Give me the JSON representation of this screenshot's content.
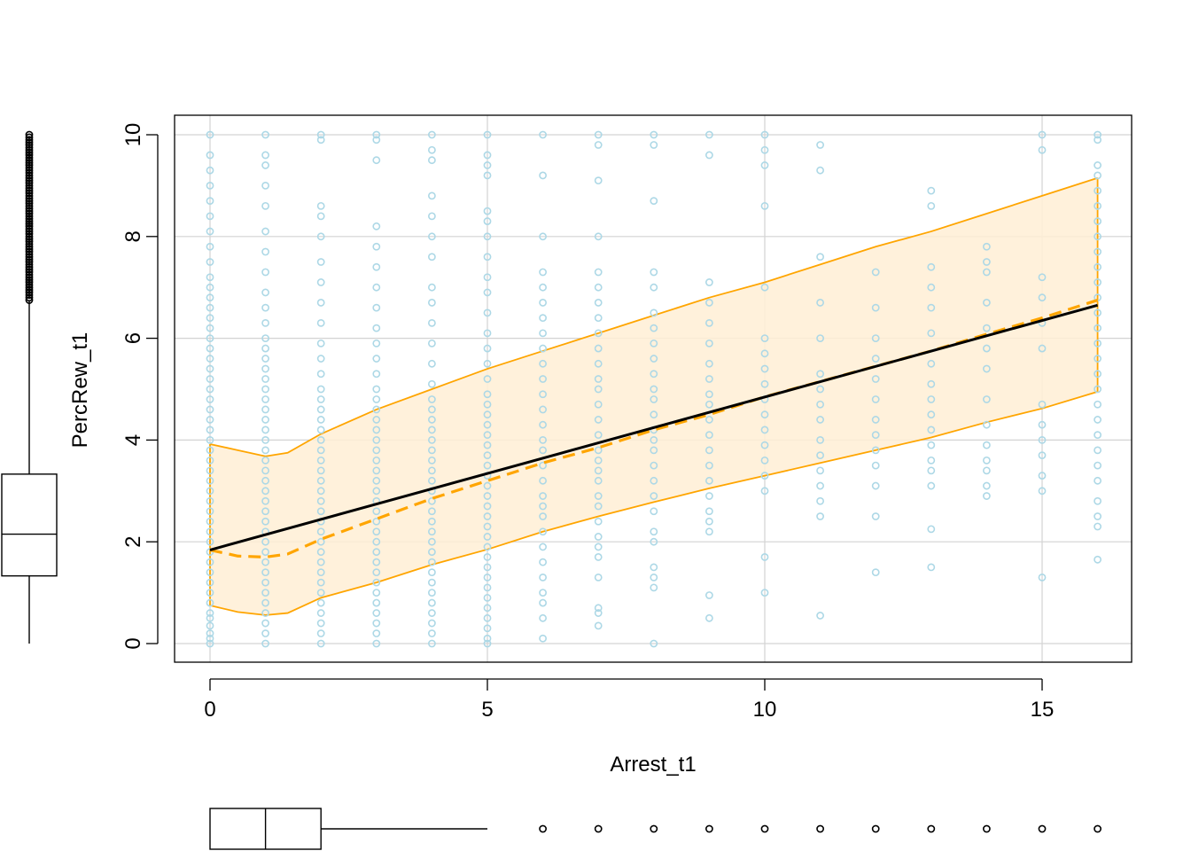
{
  "chart_data": {
    "type": "scatter",
    "xlabel": "Arrest_t1",
    "ylabel": "PercRew_t1",
    "xlim": [
      -0.6,
      16.7
    ],
    "ylim": [
      -0.38,
      10.4
    ],
    "x_ticks": [
      0,
      5,
      10,
      15
    ],
    "y_ticks": [
      0,
      2,
      4,
      6,
      8,
      10
    ],
    "grid": true,
    "colors": {
      "points": "#add8e6",
      "band_fill": "#ffefd5",
      "band_line": "#ffa500",
      "fit": "#000000",
      "smooth": "#ffa500"
    },
    "points_columns": [
      {
        "x": 0,
        "ys": [
          0,
          0.1,
          0.2,
          0.35,
          0.5,
          0.6,
          0.8,
          1.0,
          1.2,
          1.4,
          1.6,
          1.8,
          2.0,
          2.2,
          2.4,
          2.6,
          2.8,
          3.0,
          3.2,
          3.4,
          3.6,
          3.8,
          4.0,
          4.2,
          4.4,
          4.6,
          4.8,
          5.0,
          5.2,
          5.4,
          5.6,
          5.8,
          6.0,
          6.2,
          6.4,
          6.6,
          6.8,
          7.0,
          7.2,
          7.5,
          7.8,
          8.1,
          8.4,
          8.7,
          9.0,
          9.3,
          9.6,
          10.0
        ]
      },
      {
        "x": 1,
        "ys": [
          0,
          0.2,
          0.4,
          0.6,
          0.8,
          1.0,
          1.2,
          1.4,
          1.6,
          1.8,
          2.0,
          2.2,
          2.4,
          2.6,
          2.8,
          3.0,
          3.2,
          3.4,
          3.6,
          3.8,
          4.0,
          4.2,
          4.4,
          4.6,
          4.8,
          5.0,
          5.2,
          5.4,
          5.6,
          5.8,
          6.0,
          6.3,
          6.6,
          6.9,
          7.3,
          7.7,
          8.1,
          8.6,
          9.0,
          9.4,
          9.6,
          10.0
        ]
      },
      {
        "x": 2,
        "ys": [
          0,
          0.2,
          0.4,
          0.6,
          0.8,
          1.0,
          1.2,
          1.4,
          1.6,
          1.8,
          2.0,
          2.2,
          2.4,
          2.6,
          2.8,
          3.0,
          3.2,
          3.4,
          3.6,
          3.8,
          4.0,
          4.2,
          4.4,
          4.6,
          4.8,
          5.0,
          5.3,
          5.6,
          5.9,
          6.3,
          6.7,
          7.1,
          7.5,
          8.0,
          8.4,
          8.6,
          9.9,
          10.0
        ]
      },
      {
        "x": 3,
        "ys": [
          0,
          0.2,
          0.4,
          0.6,
          0.8,
          1.0,
          1.2,
          1.4,
          1.6,
          1.8,
          2.0,
          2.2,
          2.4,
          2.6,
          2.8,
          3.0,
          3.2,
          3.4,
          3.6,
          3.8,
          4.0,
          4.2,
          4.4,
          4.6,
          4.8,
          5.0,
          5.3,
          5.6,
          5.9,
          6.2,
          6.6,
          7.0,
          7.4,
          7.8,
          8.2,
          9.5,
          9.9,
          10.0
        ]
      },
      {
        "x": 4,
        "ys": [
          0,
          0.2,
          0.4,
          0.6,
          0.8,
          1.0,
          1.2,
          1.4,
          1.6,
          1.8,
          2.0,
          2.2,
          2.4,
          2.6,
          2.8,
          3.0,
          3.2,
          3.4,
          3.6,
          3.8,
          4.0,
          4.2,
          4.4,
          4.6,
          4.8,
          5.1,
          5.5,
          5.9,
          6.3,
          6.7,
          7.0,
          7.6,
          8.0,
          8.4,
          8.8,
          9.5,
          9.7,
          10.0
        ]
      },
      {
        "x": 5,
        "ys": [
          0,
          0.1,
          0.3,
          0.5,
          0.7,
          0.9,
          1.1,
          1.3,
          1.5,
          1.7,
          1.9,
          2.1,
          2.3,
          2.5,
          2.7,
          2.9,
          3.1,
          3.3,
          3.5,
          3.7,
          3.9,
          4.1,
          4.3,
          4.5,
          4.7,
          4.9,
          5.2,
          5.5,
          5.8,
          6.1,
          6.5,
          6.9,
          7.2,
          7.6,
          8.0,
          8.3,
          8.5,
          9.2,
          9.4,
          9.6,
          10.0
        ]
      },
      {
        "x": 6,
        "ys": [
          0.1,
          0.5,
          0.8,
          1.0,
          1.3,
          1.6,
          1.9,
          2.2,
          2.5,
          2.7,
          2.9,
          3.2,
          3.5,
          3.8,
          4.0,
          4.3,
          4.6,
          4.9,
          5.2,
          5.5,
          5.8,
          6.1,
          6.4,
          6.7,
          7.0,
          7.3,
          8.0,
          9.2,
          10.0
        ]
      },
      {
        "x": 7,
        "ys": [
          0.35,
          0.6,
          0.7,
          1.3,
          1.7,
          1.9,
          2.1,
          2.4,
          2.7,
          2.9,
          3.2,
          3.4,
          3.6,
          3.8,
          4.1,
          4.4,
          4.7,
          5.0,
          5.2,
          5.5,
          5.8,
          6.1,
          6.4,
          6.7,
          7.0,
          7.3,
          8.0,
          9.1,
          9.8,
          10.0
        ]
      },
      {
        "x": 8,
        "ys": [
          0,
          1.1,
          1.3,
          1.5,
          2.0,
          2.2,
          2.6,
          2.9,
          3.2,
          3.5,
          3.8,
          4.0,
          4.2,
          4.5,
          4.8,
          5.0,
          5.3,
          5.6,
          5.9,
          6.2,
          6.5,
          7.0,
          7.3,
          8.7,
          9.8,
          10.0
        ]
      },
      {
        "x": 9,
        "ys": [
          0.5,
          0.95,
          2.2,
          2.4,
          2.6,
          2.9,
          3.2,
          3.5,
          3.8,
          4.1,
          4.4,
          4.7,
          4.9,
          5.2,
          5.5,
          5.9,
          6.3,
          6.7,
          7.1,
          9.6,
          10.0
        ]
      },
      {
        "x": 10,
        "ys": [
          1.0,
          1.7,
          3.0,
          3.3,
          3.6,
          3.9,
          4.2,
          4.5,
          4.8,
          5.1,
          5.4,
          5.7,
          6.0,
          7.0,
          8.6,
          9.4,
          9.7,
          10.0
        ]
      },
      {
        "x": 11,
        "ys": [
          0.55,
          2.5,
          2.8,
          3.1,
          3.4,
          3.7,
          4.0,
          4.4,
          4.7,
          5.0,
          5.3,
          6.0,
          6.7,
          7.6,
          9.3,
          9.8
        ]
      },
      {
        "x": 12,
        "ys": [
          1.4,
          2.5,
          3.1,
          3.5,
          3.8,
          4.1,
          4.4,
          4.8,
          5.2,
          5.6,
          6.0,
          6.6,
          7.3
        ]
      },
      {
        "x": 13,
        "ys": [
          1.5,
          2.25,
          3.1,
          3.4,
          3.6,
          3.9,
          4.2,
          4.5,
          4.8,
          5.1,
          5.5,
          6.1,
          6.6,
          7.0,
          7.4,
          8.6,
          8.9
        ]
      },
      {
        "x": 14,
        "ys": [
          2.9,
          3.1,
          3.4,
          3.6,
          3.9,
          4.3,
          4.8,
          5.4,
          5.8,
          6.2,
          6.7,
          7.3,
          7.5,
          7.8
        ]
      },
      {
        "x": 15,
        "ys": [
          1.3,
          3.0,
          3.3,
          3.7,
          4.0,
          4.3,
          4.7,
          5.8,
          6.3,
          6.8,
          7.2,
          9.7,
          10.0
        ]
      },
      {
        "x": 16,
        "ys": [
          1.65,
          2.3,
          2.5,
          2.8,
          3.2,
          3.5,
          3.8,
          4.1,
          4.4,
          4.7,
          5.0,
          5.3,
          5.6,
          5.9,
          6.2,
          6.5,
          6.8,
          7.1,
          7.4,
          7.7,
          8.0,
          8.3,
          8.6,
          8.9,
          9.2,
          9.4,
          9.9,
          10.0
        ]
      }
    ],
    "fit_line": {
      "x": [
        0,
        16
      ],
      "y": [
        1.84,
        6.65
      ]
    },
    "smooth_line": {
      "x": [
        0,
        0.5,
        1,
        1.4,
        2,
        3,
        4,
        5,
        6,
        7,
        8,
        9,
        10,
        11,
        12,
        13,
        14,
        15,
        16
      ],
      "y": [
        1.84,
        1.72,
        1.7,
        1.76,
        2.05,
        2.45,
        2.85,
        3.2,
        3.55,
        3.85,
        4.2,
        4.5,
        4.85,
        5.15,
        5.45,
        5.75,
        6.08,
        6.4,
        6.75
      ]
    },
    "band_upper": {
      "x": [
        0,
        0.5,
        1,
        1.4,
        2,
        3,
        4,
        5,
        6,
        7,
        8,
        9,
        10,
        11,
        12,
        13,
        14,
        15,
        16
      ],
      "y": [
        3.92,
        3.8,
        3.68,
        3.75,
        4.12,
        4.6,
        5.0,
        5.4,
        5.75,
        6.1,
        6.45,
        6.8,
        7.1,
        7.45,
        7.8,
        8.1,
        8.45,
        8.8,
        9.15
      ]
    },
    "band_lower": {
      "x": [
        0,
        0.5,
        1,
        1.4,
        2,
        3,
        4,
        5,
        6,
        7,
        8,
        9,
        10,
        11,
        12,
        13,
        14,
        15,
        16
      ],
      "y": [
        0.75,
        0.62,
        0.56,
        0.6,
        0.9,
        1.2,
        1.55,
        1.85,
        2.2,
        2.5,
        2.78,
        3.05,
        3.3,
        3.55,
        3.8,
        4.05,
        4.35,
        4.62,
        4.95
      ]
    },
    "y_boxplot": {
      "min": 0,
      "q1": 1.33,
      "median": 2.15,
      "q3": 3.33,
      "whisker_high": 6.75,
      "outliers_range": [
        6.75,
        10.0
      ]
    },
    "x_boxplot": {
      "min": 0,
      "q1": 0,
      "median": 1,
      "q3": 2,
      "whisker_high": 5,
      "outliers": [
        6,
        7,
        8,
        9,
        10,
        11,
        12,
        13,
        14,
        15,
        16
      ]
    }
  }
}
